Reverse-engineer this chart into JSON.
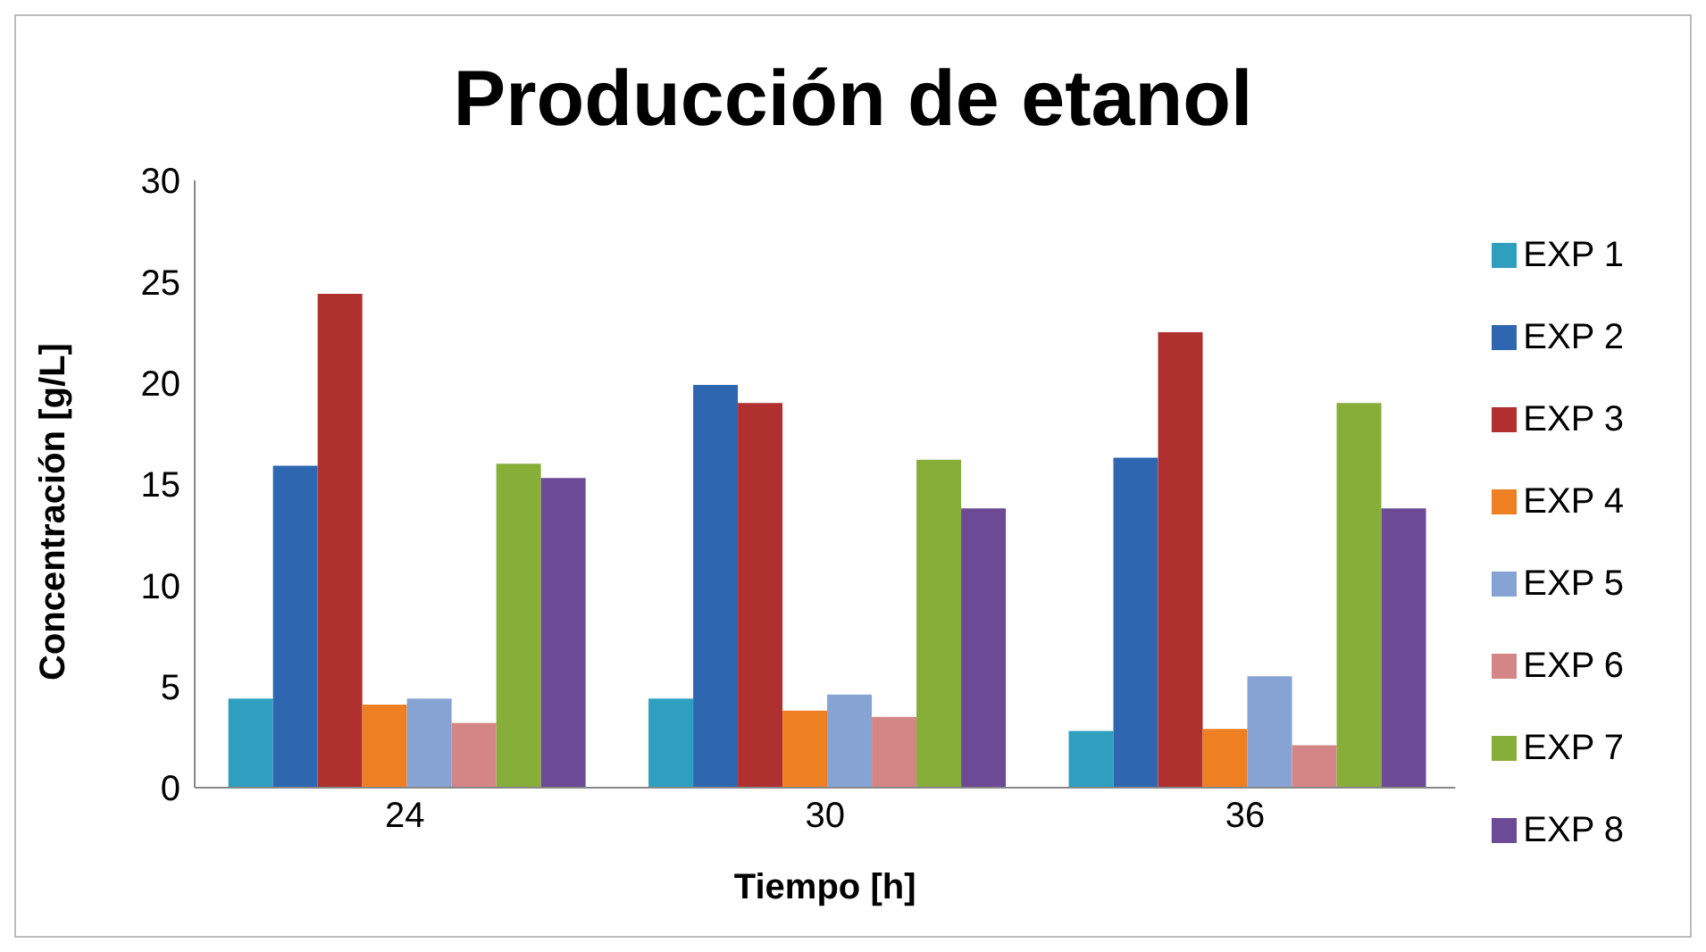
{
  "chart_data": {
    "type": "bar",
    "title": "Producción de etanol",
    "xlabel": "Tiempo [h]",
    "ylabel": "Concentración [g/L]",
    "categories": [
      "24",
      "30",
      "36"
    ],
    "series": [
      {
        "name": "EXP 1",
        "color": "#2e9fbf",
        "values": [
          4.4,
          4.4,
          2.8
        ]
      },
      {
        "name": "EXP 2",
        "color": "#2e66b0",
        "values": [
          15.9,
          19.9,
          16.3
        ]
      },
      {
        "name": "EXP 3",
        "color": "#b03030",
        "values": [
          24.4,
          19.0,
          22.5
        ]
      },
      {
        "name": "EXP 4",
        "color": "#ee7f22",
        "values": [
          4.1,
          3.8,
          2.9
        ]
      },
      {
        "name": "EXP 5",
        "color": "#86a3d3",
        "values": [
          4.4,
          4.6,
          5.5
        ]
      },
      {
        "name": "EXP 6",
        "color": "#d48585",
        "values": [
          3.2,
          3.5,
          2.1
        ]
      },
      {
        "name": "EXP 7",
        "color": "#88ae3a",
        "values": [
          16.0,
          16.2,
          19.0
        ]
      },
      {
        "name": "EXP 8",
        "color": "#6c4a95",
        "values": [
          15.3,
          13.8,
          13.8
        ]
      }
    ],
    "ylim": [
      0,
      30
    ],
    "yticks": [
      0,
      5,
      10,
      15,
      20,
      25,
      30
    ],
    "grid": false,
    "legend": "right"
  }
}
